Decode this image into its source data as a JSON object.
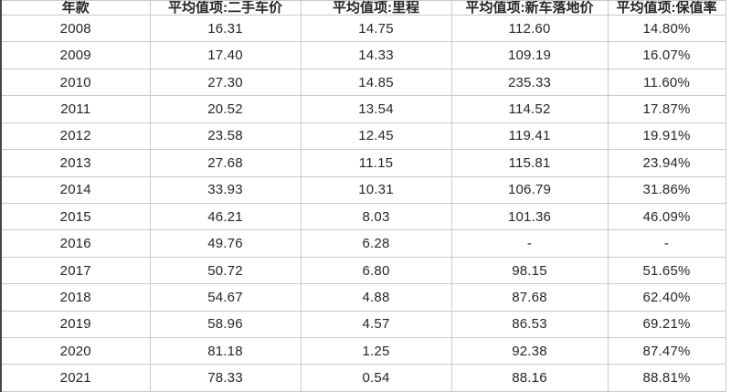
{
  "chart_data": {
    "type": "table",
    "title": "",
    "columns": [
      "年款",
      "平均值项:二手车价",
      "平均值项:里程",
      "平均值项:新车落地价",
      "平均值项:保值率"
    ],
    "rows": [
      [
        "2008",
        "16.31",
        "14.75",
        "112.60",
        "14.80%"
      ],
      [
        "2009",
        "17.40",
        "14.33",
        "109.19",
        "16.07%"
      ],
      [
        "2010",
        "27.30",
        "14.85",
        "235.33",
        "11.60%"
      ],
      [
        "2011",
        "20.52",
        "13.54",
        "114.52",
        "17.87%"
      ],
      [
        "2012",
        "23.58",
        "12.45",
        "119.41",
        "19.91%"
      ],
      [
        "2013",
        "27.68",
        "11.15",
        "115.81",
        "23.94%"
      ],
      [
        "2014",
        "33.93",
        "10.31",
        "106.79",
        "31.86%"
      ],
      [
        "2015",
        "46.21",
        "8.03",
        "101.36",
        "46.09%"
      ],
      [
        "2016",
        "49.76",
        "6.28",
        "-",
        "-"
      ],
      [
        "2017",
        "50.72",
        "6.80",
        "98.15",
        "51.65%"
      ],
      [
        "2018",
        "54.67",
        "4.88",
        "87.68",
        "62.40%"
      ],
      [
        "2019",
        "58.96",
        "4.57",
        "86.53",
        "69.21%"
      ],
      [
        "2020",
        "81.18",
        "1.25",
        "92.38",
        "87.47%"
      ],
      [
        "2021",
        "78.33",
        "0.54",
        "88.16",
        "88.81%"
      ]
    ],
    "missing_value_placeholder": "-",
    "layout": {
      "grid": "on",
      "header_bold": true,
      "cell_alignment": "center"
    }
  },
  "colors": {
    "border": "#c9c9c9",
    "outer_left_edge": "#474747",
    "text": "#262626",
    "background": "#ffffff"
  }
}
